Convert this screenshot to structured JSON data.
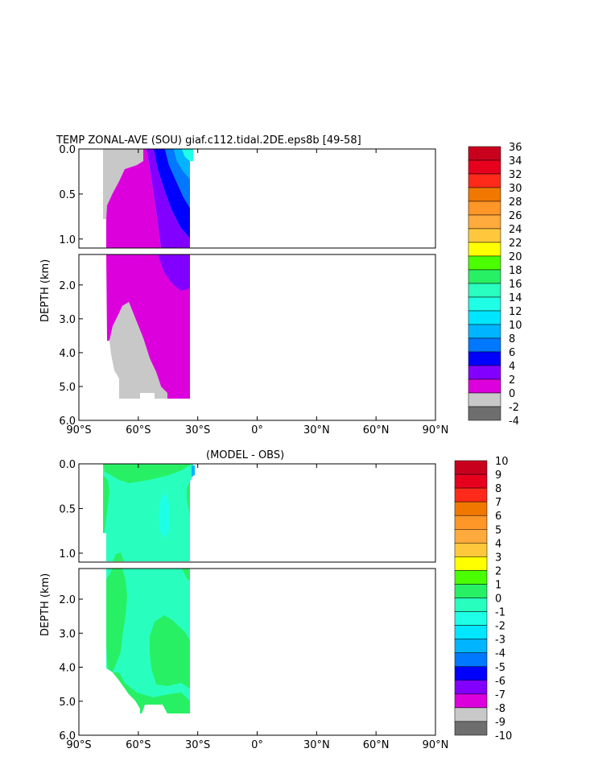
{
  "chart_data": [
    {
      "type": "contour",
      "title": "TEMP ZONAL-AVE (SOU) giaf.c112.tidal.2DE.eps8b [49-58]",
      "ylabel": "DEPTH (km)",
      "x_ticks": [
        "90°S",
        "60°S",
        "30°S",
        "0°",
        "30°N",
        "60°N",
        "90°N"
      ],
      "y_ticks_upper": [
        "0.0",
        "0.5",
        "1.0"
      ],
      "y_ticks_lower": [
        "2.0",
        "3.0",
        "4.0",
        "5.0",
        "6.0"
      ],
      "xlim": [
        -90,
        90
      ],
      "ylim_km": [
        0,
        6
      ],
      "data_extent_lat": [
        -77,
        -34
      ],
      "colorbar": {
        "levels": [
          "36",
          "34",
          "32",
          "30",
          "28",
          "26",
          "24",
          "22",
          "20",
          "18",
          "16",
          "14",
          "12",
          "10",
          "8",
          "6",
          "4",
          "2",
          "0",
          "-2",
          "-4"
        ],
        "colors": [
          "#c8001e",
          "#e6001e",
          "#ff2a1a",
          "#f07800",
          "#ff9628",
          "#ffaa3c",
          "#ffc83c",
          "#ffff00",
          "#4bff00",
          "#28f064",
          "#28ffbe",
          "#1effe6",
          "#00e6ff",
          "#00b4ff",
          "#0078ff",
          "#0000ff",
          "#8200ff",
          "#dc00dc",
          "#c8c8c8",
          "#6e6e6e"
        ]
      }
    },
    {
      "type": "contour",
      "title": "(MODEL - OBS)",
      "ylabel": "DEPTH (km)",
      "x_ticks": [
        "90°S",
        "60°S",
        "30°S",
        "0°",
        "30°N",
        "60°N",
        "90°N"
      ],
      "y_ticks_upper": [
        "0.0",
        "0.5",
        "1.0"
      ],
      "y_ticks_lower": [
        "2.0",
        "3.0",
        "4.0",
        "5.0",
        "6.0"
      ],
      "xlim": [
        -90,
        90
      ],
      "ylim_km": [
        0,
        6
      ],
      "data_extent_lat": [
        -77,
        -34
      ],
      "colorbar": {
        "levels": [
          "10",
          "9",
          "8",
          "7",
          "6",
          "5",
          "4",
          "3",
          "2",
          "1",
          "0",
          "-1",
          "-2",
          "-3",
          "-4",
          "-5",
          "-6",
          "-7",
          "-8",
          "-9",
          "-10"
        ],
        "colors": [
          "#c8001e",
          "#e6001e",
          "#ff2a1a",
          "#f07800",
          "#ff9628",
          "#ffaa3c",
          "#ffc83c",
          "#ffff00",
          "#4bff00",
          "#28f064",
          "#28ffbe",
          "#1effe6",
          "#00e6ff",
          "#00b4ff",
          "#0078ff",
          "#0000ff",
          "#8200ff",
          "#dc00dc",
          "#c8c8c8",
          "#6e6e6e"
        ]
      }
    }
  ]
}
